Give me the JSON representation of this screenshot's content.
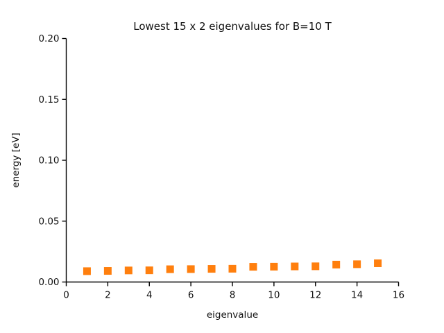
{
  "figure": {
    "background": "#ffffff"
  },
  "chart_data": {
    "type": "scatter",
    "title": "Lowest 15 x 2 eigenvalues for B=10 T",
    "xlabel": "eigenvalue",
    "ylabel": "energy [eV]",
    "x": [
      1,
      2,
      3,
      4,
      5,
      6,
      7,
      8,
      9,
      10,
      11,
      12,
      13,
      14,
      15
    ],
    "y": [
      0.0089,
      0.0091,
      0.0095,
      0.0096,
      0.0105,
      0.0106,
      0.0108,
      0.0109,
      0.0125,
      0.0126,
      0.0128,
      0.0129,
      0.0143,
      0.0146,
      0.0154
    ],
    "xlim": [
      0,
      16
    ],
    "ylim": [
      0.0,
      0.2
    ],
    "xticks": [
      0,
      2,
      4,
      6,
      8,
      10,
      12,
      14,
      16
    ],
    "xtick_labels": [
      "0",
      "2",
      "4",
      "6",
      "8",
      "10",
      "12",
      "14",
      "16"
    ],
    "yticks": [
      0.0,
      0.05,
      0.1,
      0.15,
      0.2
    ],
    "ytick_labels": [
      "0.00",
      "0.05",
      "0.10",
      "0.15",
      "0.20"
    ],
    "marker": "square",
    "marker_color": "#ff7f0e",
    "axis_color": "#000000",
    "grid": false,
    "legend": null
  }
}
